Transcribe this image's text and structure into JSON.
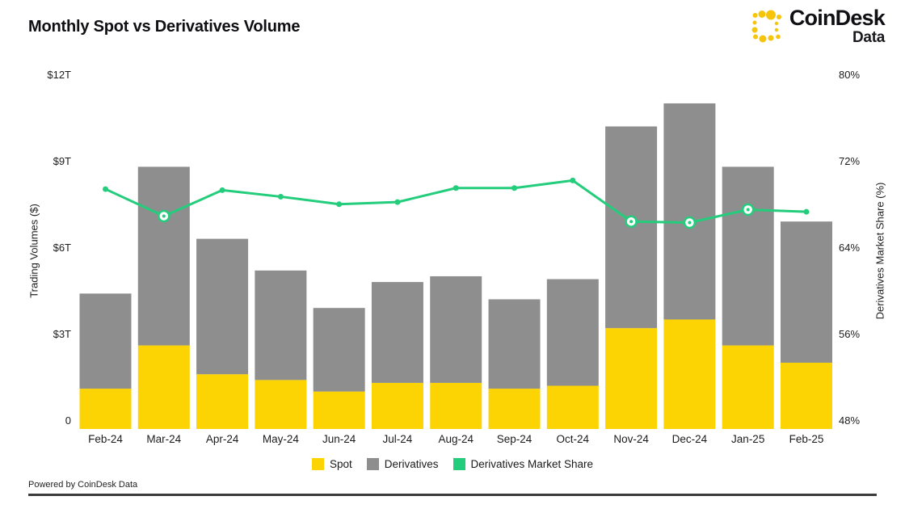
{
  "header": {
    "title": "Monthly Spot vs Derivatives Volume",
    "brand": {
      "name": "CoinDesk",
      "sub": "Data",
      "logo_color": "#F6C50B"
    }
  },
  "chart_data": {
    "type": "bar",
    "subtype": "stacked-bars-with-line-overlay",
    "title": "Monthly Spot vs Derivatives Volume",
    "categories": [
      "Feb-24",
      "Mar-24",
      "Apr-24",
      "May-24",
      "Jun-24",
      "Jul-24",
      "Aug-24",
      "Sep-24",
      "Oct-24",
      "Nov-24",
      "Dec-24",
      "Jan-25",
      "Feb-25"
    ],
    "series": [
      {
        "name": "Spot",
        "type": "bar",
        "stack": "volume",
        "unit": "$T",
        "color": "#FCD303",
        "values": [
          1.4,
          2.9,
          1.9,
          1.7,
          1.3,
          1.6,
          1.6,
          1.4,
          1.5,
          3.5,
          3.8,
          2.9,
          2.3
        ]
      },
      {
        "name": "Derivatives",
        "type": "bar",
        "stack": "volume",
        "unit": "$T",
        "color": "#8E8E8E",
        "values": [
          3.3,
          6.2,
          4.7,
          3.8,
          2.9,
          3.5,
          3.7,
          3.1,
          3.7,
          7.0,
          7.5,
          6.2,
          4.9
        ]
      },
      {
        "name": "Derivatives Market Share",
        "type": "line",
        "axis": "right",
        "unit": "%",
        "color": "#23CD7C",
        "values": [
          70.2,
          67.7,
          70.1,
          69.5,
          68.8,
          69.0,
          70.3,
          70.3,
          71.0,
          67.2,
          67.1,
          68.3,
          68.1
        ],
        "ring_marker_categories": [
          "Mar-24",
          "Nov-24",
          "Dec-24",
          "Jan-25"
        ]
      }
    ],
    "left_axis": {
      "label": "Trading Volumes ($)",
      "min": 0,
      "max": 12,
      "ticks": [
        {
          "label": "$12T",
          "value": 12
        },
        {
          "label": "$9T",
          "value": 9
        },
        {
          "label": "$6T",
          "value": 6
        },
        {
          "label": "$3T",
          "value": 3
        },
        {
          "label": "0",
          "value": 0
        }
      ]
    },
    "right_axis": {
      "label": "Derivatives Market Share (%)",
      "min": 48,
      "max": 80,
      "ticks": [
        {
          "label": "80%",
          "value": 80
        },
        {
          "label": "72%",
          "value": 72
        },
        {
          "label": "64%",
          "value": 64
        },
        {
          "label": "56%",
          "value": 56
        },
        {
          "label": "48%",
          "value": 48
        }
      ]
    },
    "legend": [
      {
        "label": "Spot",
        "color": "#FCD303"
      },
      {
        "label": "Derivatives",
        "color": "#8E8E8E"
      },
      {
        "label": "Derivatives Market Share",
        "color": "#23CD7C"
      }
    ],
    "grid": false,
    "legend_position": "bottom-center"
  },
  "footer": {
    "credit": "Powered by CoinDesk Data"
  }
}
